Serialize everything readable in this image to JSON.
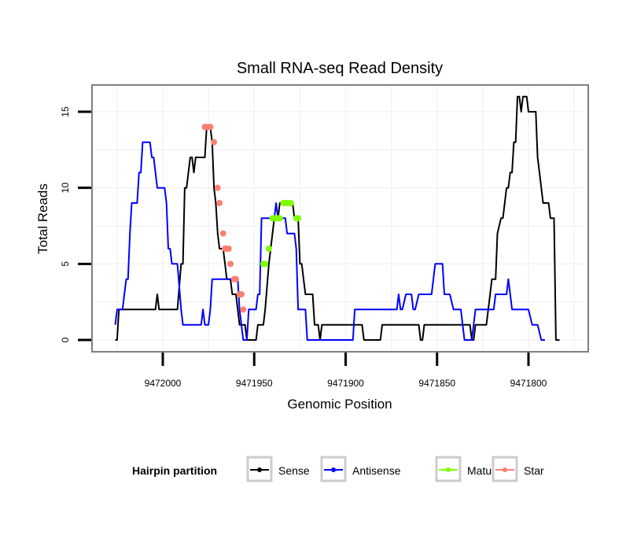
{
  "chart_data": {
    "type": "line",
    "title": "Small RNA-seq Read Density",
    "xlabel": "Genomic Position",
    "ylabel": "Total Reads",
    "x_reversed": true,
    "xlim": [
      9472040,
      9471788
    ],
    "ylim": [
      -0.75,
      16.75
    ],
    "x_ticks": [
      9472000,
      9471950,
      9471900,
      9471850,
      9471800
    ],
    "x_tick_labels": [
      "9472000",
      "9471950",
      "9471900",
      "9471850",
      "9471800"
    ],
    "y_ticks": [
      0,
      5,
      10,
      15
    ],
    "y_tick_labels": [
      "0",
      "5",
      "10",
      "15"
    ],
    "grid": true,
    "legend": {
      "title": "Hairpin partition",
      "position": "bottom",
      "entries": [
        {
          "label": "Sense",
          "color": "#000000"
        },
        {
          "label": "Antisense",
          "color": "#0000ff"
        },
        {
          "label": "Mature",
          "color": "#7fff00"
        },
        {
          "label": "Star",
          "color": "#fa8072"
        }
      ]
    },
    "series": [
      {
        "name": "Sense",
        "color": "#000000",
        "style": "line",
        "points": [
          [
            9472026,
            0
          ],
          [
            9472025,
            0
          ],
          [
            9472024,
            2
          ],
          [
            9472004,
            2
          ],
          [
            9472003,
            3
          ],
          [
            9472002,
            2
          ],
          [
            9471992,
            2
          ],
          [
            9471990,
            5
          ],
          [
            9471989,
            5
          ],
          [
            9471988,
            10
          ],
          [
            9471987,
            10
          ],
          [
            9471985,
            12
          ],
          [
            9471984,
            12
          ],
          [
            9471983,
            11
          ],
          [
            9471982,
            12
          ],
          [
            9471977,
            12
          ],
          [
            9471976,
            14
          ],
          [
            9471974,
            14
          ],
          [
            9471973,
            13
          ],
          [
            9471972,
            10
          ],
          [
            9471971,
            9
          ],
          [
            9471970,
            7
          ],
          [
            9471969,
            6
          ],
          [
            9471967,
            6
          ],
          [
            9471966,
            5
          ],
          [
            9471965,
            4
          ],
          [
            9471963,
            4
          ],
          [
            9471962,
            3
          ],
          [
            9471960,
            3
          ],
          [
            9471959,
            2
          ],
          [
            9471958,
            1
          ],
          [
            9471955,
            1
          ],
          [
            9471954,
            0
          ],
          [
            9471949,
            0
          ],
          [
            9471948,
            1
          ],
          [
            9471945,
            1
          ],
          [
            9471944,
            2
          ],
          [
            9471942,
            5
          ],
          [
            9471941,
            6
          ],
          [
            9471940,
            7
          ],
          [
            9471939,
            8
          ],
          [
            9471937,
            8
          ],
          [
            9471936,
            9
          ],
          [
            9471929,
            9
          ],
          [
            9471928,
            8
          ],
          [
            9471926,
            8
          ],
          [
            9471925,
            5
          ],
          [
            9471924,
            5
          ],
          [
            9471923,
            4
          ],
          [
            9471922,
            3
          ],
          [
            9471918,
            3
          ],
          [
            9471917,
            1
          ],
          [
            9471915,
            1
          ],
          [
            9471914,
            0
          ],
          [
            9471913,
            1
          ],
          [
            9471891,
            1
          ],
          [
            9471890,
            0
          ],
          [
            9471881,
            0
          ],
          [
            9471880,
            1
          ],
          [
            9471860,
            1
          ],
          [
            9471859,
            0
          ],
          [
            9471858,
            0
          ],
          [
            9471857,
            1
          ],
          [
            9471832,
            1
          ],
          [
            9471831,
            0
          ],
          [
            9471830,
            0
          ],
          [
            9471829,
            1
          ],
          [
            9471823,
            1
          ],
          [
            9471821,
            3
          ],
          [
            9471820,
            4
          ],
          [
            9471818,
            4
          ],
          [
            9471817,
            7
          ],
          [
            9471815,
            8
          ],
          [
            9471814,
            8
          ],
          [
            9471813,
            9
          ],
          [
            9471812,
            10
          ],
          [
            9471811,
            10
          ],
          [
            9471810,
            11
          ],
          [
            9471809,
            11
          ],
          [
            9471808,
            13
          ],
          [
            9471807,
            13
          ],
          [
            9471806,
            16
          ],
          [
            9471805,
            16
          ],
          [
            9471804,
            15
          ],
          [
            9471803,
            16
          ],
          [
            9471801,
            16
          ],
          [
            9471800,
            15
          ],
          [
            9471796,
            15
          ],
          [
            9471795,
            12
          ],
          [
            9471794,
            11
          ],
          [
            9471793,
            10
          ],
          [
            9471792,
            9
          ],
          [
            9471789,
            9
          ],
          [
            9471788,
            8
          ],
          [
            9471786,
            8
          ],
          [
            9471785,
            0
          ],
          [
            9471783,
            0
          ]
        ]
      },
      {
        "name": "Antisense",
        "color": "#0000ff",
        "style": "line",
        "points": [
          [
            9472026,
            1
          ],
          [
            9472025,
            2
          ],
          [
            9472022,
            2
          ],
          [
            9472020,
            4
          ],
          [
            9472019,
            4
          ],
          [
            9472018,
            7
          ],
          [
            9472017,
            9
          ],
          [
            9472014,
            9
          ],
          [
            9472013,
            11
          ],
          [
            9472012,
            11
          ],
          [
            9472011,
            13
          ],
          [
            9472007,
            13
          ],
          [
            9472006,
            12
          ],
          [
            9472005,
            12
          ],
          [
            9472004,
            11
          ],
          [
            9472003,
            10
          ],
          [
            9471999,
            10
          ],
          [
            9471998,
            9
          ],
          [
            9471997,
            6
          ],
          [
            9471996,
            6
          ],
          [
            9471995,
            5
          ],
          [
            9471992,
            5
          ],
          [
            9471990,
            2
          ],
          [
            9471989,
            1
          ],
          [
            9471979,
            1
          ],
          [
            9471978,
            2
          ],
          [
            9471977,
            1
          ],
          [
            9471975,
            1
          ],
          [
            9471974,
            2
          ],
          [
            9471973,
            4
          ],
          [
            9471959,
            4
          ],
          [
            9471958,
            2
          ],
          [
            9471956,
            0
          ],
          [
            9471954,
            0
          ],
          [
            9471953,
            2
          ],
          [
            9471949,
            2
          ],
          [
            9471948,
            3
          ],
          [
            9471947,
            3
          ],
          [
            9471946,
            8
          ],
          [
            9471939,
            8
          ],
          [
            9471938,
            9
          ],
          [
            9471937,
            8
          ],
          [
            9471933,
            8
          ],
          [
            9471932,
            7
          ],
          [
            9471928,
            7
          ],
          [
            9471927,
            6
          ],
          [
            9471926,
            2
          ],
          [
            9471922,
            2
          ],
          [
            9471921,
            0
          ],
          [
            9471896,
            0
          ],
          [
            9471895,
            2
          ],
          [
            9471872,
            2
          ],
          [
            9471871,
            3
          ],
          [
            9471870,
            2
          ],
          [
            9471869,
            2
          ],
          [
            9471867,
            3
          ],
          [
            9471864,
            3
          ],
          [
            9471863,
            2
          ],
          [
            9471862,
            2
          ],
          [
            9471860,
            3
          ],
          [
            9471853,
            3
          ],
          [
            9471851,
            5
          ],
          [
            9471847,
            5
          ],
          [
            9471846,
            3
          ],
          [
            9471843,
            3
          ],
          [
            9471841,
            2
          ],
          [
            9471837,
            2
          ],
          [
            9471836,
            1
          ],
          [
            9471835,
            0
          ],
          [
            9471831,
            0
          ],
          [
            9471829,
            2
          ],
          [
            9471819,
            2
          ],
          [
            9471818,
            3
          ],
          [
            9471812,
            3
          ],
          [
            9471811,
            4
          ],
          [
            9471810,
            3
          ],
          [
            9471809,
            2
          ],
          [
            9471800,
            2
          ],
          [
            9471798,
            1
          ],
          [
            9471795,
            1
          ],
          [
            9471793,
            0
          ],
          [
            9471791,
            0
          ]
        ]
      },
      {
        "name": "Mature",
        "color": "#7fff00",
        "style": "points",
        "points": [
          [
            9471945,
            5
          ],
          [
            9471944,
            5
          ],
          [
            9471942,
            6
          ],
          [
            9471940,
            8
          ],
          [
            9471939,
            8
          ],
          [
            9471938,
            8
          ],
          [
            9471937,
            8
          ],
          [
            9471936,
            8
          ],
          [
            9471934,
            9
          ],
          [
            9471933,
            9
          ],
          [
            9471932,
            9
          ],
          [
            9471931,
            9
          ],
          [
            9471930,
            9
          ],
          [
            9471927,
            8
          ],
          [
            9471926,
            8
          ]
        ]
      },
      {
        "name": "Star",
        "color": "#fa8072",
        "style": "points",
        "points": [
          [
            9471977,
            14
          ],
          [
            9471976,
            14
          ],
          [
            9471975,
            14
          ],
          [
            9471974,
            14
          ],
          [
            9471972,
            13
          ],
          [
            9471970,
            10
          ],
          [
            9471969,
            9
          ],
          [
            9471967,
            7
          ],
          [
            9471966,
            6
          ],
          [
            9471965,
            6
          ],
          [
            9471964,
            6
          ],
          [
            9471963,
            5
          ],
          [
            9471961,
            4
          ],
          [
            9471960,
            4
          ],
          [
            9471958,
            3
          ],
          [
            9471957,
            3
          ],
          [
            9471956,
            2
          ]
        ]
      }
    ]
  }
}
